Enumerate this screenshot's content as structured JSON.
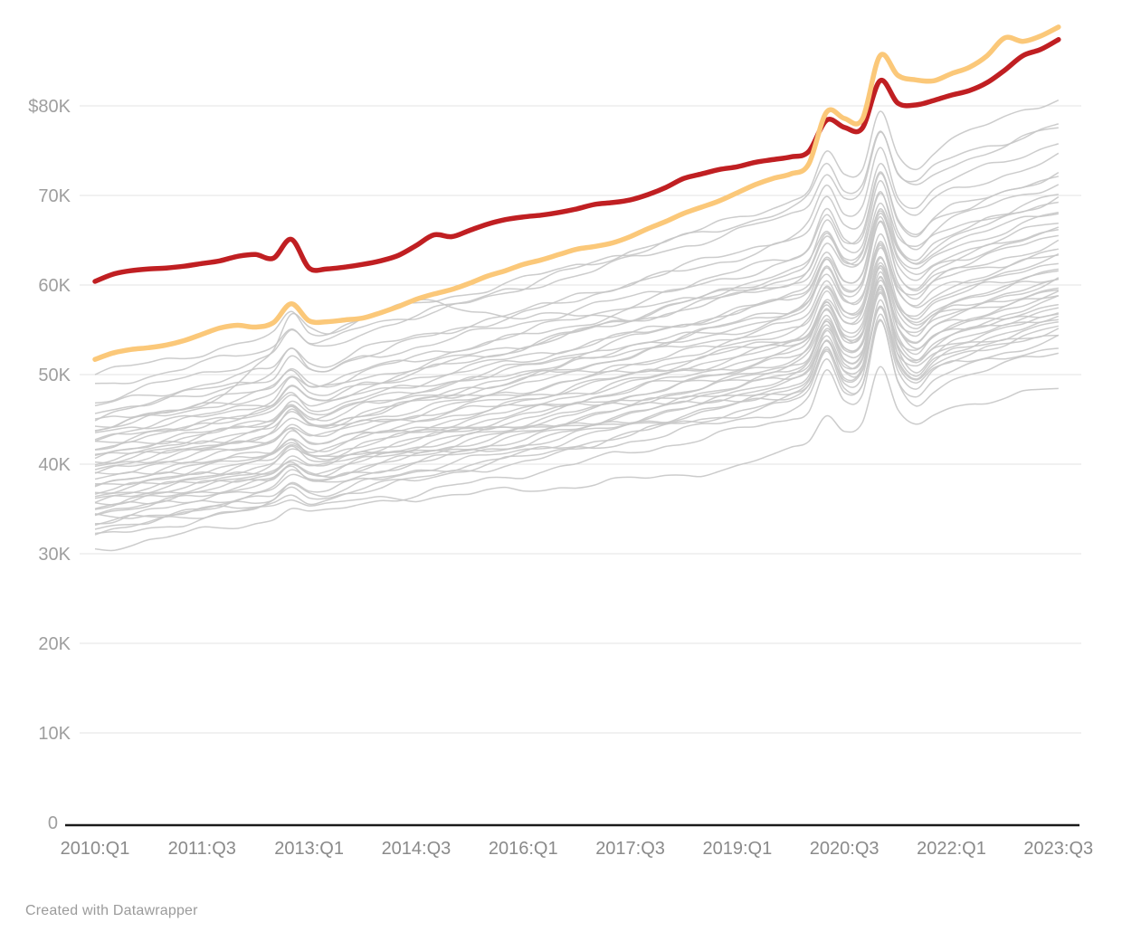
{
  "footer": {
    "credit": "Created with Datawrapper"
  },
  "chart_data": {
    "type": "line",
    "title": "",
    "xlabel": "",
    "ylabel": "",
    "x_unit": "quarter",
    "y_unit": "USD (thousands)",
    "ylim": [
      0,
      90
    ],
    "grid": "horizontal",
    "legend": "none",
    "x_tick_labels": [
      "2010:Q1",
      "2011:Q3",
      "2013:Q1",
      "2014:Q3",
      "2016:Q1",
      "2017:Q3",
      "2019:Q1",
      "2020:Q3",
      "2022:Q1",
      "2023:Q3"
    ],
    "x_tick_quarters": [
      0,
      6,
      12,
      18,
      24,
      30,
      36,
      42,
      48,
      54
    ],
    "n_quarters": 55,
    "y_tick_labels": [
      "$80K",
      "70K",
      "60K",
      "50K",
      "40K",
      "30K",
      "20K",
      "10K",
      "0"
    ],
    "y_tick_values": [
      80,
      70,
      60,
      50,
      40,
      30,
      20,
      10,
      0
    ],
    "colors": {
      "highlight_red": "#c01f22",
      "highlight_yellow": "#fbc879",
      "background_line": "#c7c7c7",
      "grid_line": "#e3e3e3",
      "axis_line": "#1a1a1a",
      "y_label": "#9e9e9e",
      "x_label": "#8a8a8a"
    },
    "series": [
      {
        "name": "highlight-red",
        "role": "highlight",
        "color_key": "highlight_red",
        "values": [
          60.4,
          61.2,
          61.6,
          61.8,
          61.9,
          62.1,
          62.4,
          62.7,
          63.2,
          63.4,
          63.0,
          65.1,
          61.9,
          61.8,
          62.0,
          62.3,
          62.7,
          63.3,
          64.4,
          65.6,
          65.4,
          66.1,
          66.8,
          67.3,
          67.6,
          67.8,
          68.1,
          68.5,
          69.0,
          69.2,
          69.5,
          70.1,
          70.9,
          71.9,
          72.4,
          72.9,
          73.2,
          73.7,
          74.0,
          74.3,
          74.9,
          78.4,
          77.6,
          77.5,
          82.8,
          80.3,
          80.1,
          80.6,
          81.2,
          81.7,
          82.6,
          84.0,
          85.6,
          86.3,
          87.4
        ]
      },
      {
        "name": "highlight-yellow",
        "role": "highlight",
        "color_key": "highlight_yellow",
        "values": [
          51.7,
          52.4,
          52.8,
          53.0,
          53.3,
          53.8,
          54.5,
          55.2,
          55.5,
          55.3,
          55.8,
          57.9,
          56.0,
          55.9,
          56.1,
          56.3,
          56.9,
          57.6,
          58.4,
          59.0,
          59.5,
          60.2,
          61.0,
          61.6,
          62.3,
          62.8,
          63.4,
          64.0,
          64.3,
          64.7,
          65.4,
          66.3,
          67.1,
          68.0,
          68.7,
          69.4,
          70.3,
          71.2,
          71.9,
          72.4,
          73.5,
          79.3,
          78.6,
          78.5,
          85.6,
          83.4,
          82.9,
          82.8,
          83.6,
          84.3,
          85.6,
          87.6,
          87.2,
          87.8,
          88.8
        ]
      }
    ],
    "background_series_note": "values sampled at x_tick_quarters; sp = spike amplitudes (K) at 2012:Q4, 2020:Q2, 2021:Q1",
    "background_series": [
      {
        "v": [
          50.0,
          52.5,
          55.0,
          57.8,
          60.6,
          63.7,
          66.8,
          70.2,
          74.1,
          78.0
        ],
        "sp": [
          2.2,
          3.8,
          6.1
        ]
      },
      {
        "v": [
          48.6,
          51.2,
          53.8,
          56.7,
          59.6,
          62.8,
          66.0,
          69.5,
          73.5,
          77.6
        ],
        "sp": [
          2.1,
          3.9,
          6.3
        ]
      },
      {
        "v": [
          47.0,
          50.1,
          53.1,
          56.5,
          59.9,
          63.7,
          67.4,
          71.5,
          76.2,
          81.0
        ],
        "sp": [
          2.3,
          4.0,
          6.5
        ]
      },
      {
        "v": [
          46.4,
          48.9,
          51.4,
          54.2,
          57.0,
          60.1,
          63.1,
          66.5,
          70.4,
          74.3
        ],
        "sp": [
          2.1,
          3.7,
          6.0
        ]
      },
      {
        "v": [
          45.8,
          48.2,
          50.5,
          53.1,
          55.8,
          58.6,
          61.5,
          64.7,
          68.3,
          72.0
        ],
        "sp": [
          2.0,
          3.8,
          6.3
        ]
      },
      {
        "v": [
          45.2,
          48.0,
          50.7,
          53.8,
          56.9,
          60.3,
          63.7,
          67.4,
          71.7,
          76.0
        ],
        "sp": [
          2.2,
          4.1,
          6.7
        ]
      },
      {
        "v": [
          44.6,
          46.9,
          49.2,
          51.7,
          54.3,
          57.0,
          59.8,
          62.9,
          66.4,
          70.0
        ],
        "sp": [
          1.9,
          3.9,
          6.5
        ]
      },
      {
        "v": [
          44.2,
          46.4,
          48.5,
          50.9,
          53.4,
          56.0,
          58.7,
          61.6,
          64.9,
          68.3
        ],
        "sp": [
          1.8,
          3.8,
          6.4
        ]
      },
      {
        "v": [
          43.8,
          46.4,
          49.0,
          51.8,
          54.7,
          57.9,
          61.0,
          64.5,
          68.5,
          72.5
        ],
        "sp": [
          2.0,
          4.2,
          7.0
        ]
      },
      {
        "v": [
          43.4,
          45.4,
          47.5,
          49.7,
          52.0,
          54.5,
          57.0,
          59.7,
          62.8,
          66.0
        ],
        "sp": [
          1.8,
          3.7,
          6.2
        ]
      },
      {
        "v": [
          43.0,
          45.4,
          47.8,
          50.4,
          53.1,
          56.0,
          58.9,
          62.1,
          65.8,
          69.5
        ],
        "sp": [
          1.9,
          4.1,
          6.9
        ]
      },
      {
        "v": [
          42.6,
          44.5,
          46.5,
          48.6,
          50.7,
          53.1,
          55.4,
          58.0,
          61.0,
          64.0
        ],
        "sp": [
          1.7,
          3.6,
          6.1
        ]
      },
      {
        "v": [
          42.2,
          44.4,
          46.7,
          49.1,
          51.6,
          54.4,
          57.1,
          60.1,
          63.5,
          67.0
        ],
        "sp": [
          1.8,
          4.0,
          6.8
        ]
      },
      {
        "v": [
          41.8,
          44.5,
          47.1,
          50.1,
          53.1,
          56.4,
          59.6,
          63.2,
          67.3,
          71.5
        ],
        "sp": [
          2.0,
          4.4,
          7.3
        ]
      },
      {
        "v": [
          41.5,
          43.4,
          45.4,
          47.5,
          49.7,
          52.0,
          54.4,
          57.0,
          60.0,
          63.0
        ],
        "sp": [
          1.6,
          3.7,
          6.3
        ]
      },
      {
        "v": [
          41.2,
          43.4,
          45.6,
          48.0,
          50.4,
          53.1,
          55.8,
          58.7,
          62.1,
          65.5
        ],
        "sp": [
          1.7,
          4.0,
          6.8
        ]
      },
      {
        "v": [
          40.9,
          42.8,
          44.7,
          46.8,
          48.9,
          51.2,
          53.6,
          56.1,
          59.0,
          62.0
        ],
        "sp": [
          1.6,
          3.8,
          6.4
        ]
      },
      {
        "v": [
          40.6,
          43.1,
          45.5,
          48.3,
          51.0,
          54.0,
          57.0,
          60.3,
          64.2,
          68.0
        ],
        "sp": [
          1.9,
          4.3,
          7.2
        ]
      },
      {
        "v": [
          40.3,
          42.2,
          44.0,
          46.1,
          48.2,
          50.4,
          52.7,
          55.2,
          58.1,
          61.0
        ],
        "sp": [
          1.5,
          3.7,
          6.3
        ]
      },
      {
        "v": [
          40.0,
          42.2,
          44.5,
          46.9,
          49.4,
          52.2,
          54.9,
          57.9,
          61.3,
          64.8
        ],
        "sp": [
          1.7,
          4.1,
          7.0
        ]
      },
      {
        "v": [
          39.7,
          41.6,
          43.4,
          45.5,
          47.5,
          49.8,
          52.1,
          54.5,
          57.4,
          60.3
        ],
        "sp": [
          1.5,
          3.8,
          6.4
        ]
      },
      {
        "v": [
          39.4,
          41.8,
          44.3,
          47.0,
          49.7,
          52.7,
          55.7,
          58.9,
          62.7,
          66.5
        ],
        "sp": [
          1.8,
          4.4,
          7.4
        ]
      },
      {
        "v": [
          39.1,
          40.9,
          42.8,
          44.8,
          46.9,
          49.1,
          51.4,
          53.9,
          56.7,
          59.6
        ],
        "sp": [
          1.5,
          3.8,
          6.5
        ]
      },
      {
        "v": [
          38.8,
          41.0,
          43.2,
          45.7,
          48.2,
          50.9,
          53.6,
          56.6,
          60.0,
          63.5
        ],
        "sp": [
          1.6,
          4.2,
          7.1
        ]
      },
      {
        "v": [
          44.0,
          46.5,
          55.0,
          58.0,
          56.5,
          56.5,
          59.5,
          62.0,
          65.0,
          70.0
        ],
        "sp": [
          3.0,
          3.5,
          5.5
        ]
      },
      {
        "v": [
          38.2,
          40.1,
          41.9,
          44.0,
          46.0,
          48.3,
          50.6,
          53.0,
          55.9,
          58.8
        ],
        "sp": [
          1.4,
          3.9,
          6.6
        ]
      },
      {
        "v": [
          37.9,
          40.1,
          42.3,
          44.8,
          47.2,
          50.0,
          52.7,
          55.6,
          59.1,
          62.5
        ],
        "sp": [
          1.6,
          4.3,
          7.3
        ]
      },
      {
        "v": [
          37.6,
          39.4,
          41.3,
          43.3,
          45.4,
          47.6,
          49.8,
          52.3,
          55.1,
          58.0
        ],
        "sp": [
          1.4,
          3.9,
          6.7
        ]
      },
      {
        "v": [
          37.3,
          39.5,
          41.7,
          44.1,
          46.5,
          49.2,
          51.8,
          54.7,
          58.1,
          61.5
        ],
        "sp": [
          1.5,
          4.3,
          7.4
        ]
      },
      {
        "v": [
          37.0,
          38.8,
          40.6,
          42.7,
          44.7,
          46.9,
          49.1,
          51.5,
          54.4,
          57.2
        ],
        "sp": [
          1.4,
          4.0,
          6.8
        ]
      },
      {
        "v": [
          36.7,
          38.8,
          41.0,
          43.4,
          45.7,
          48.4,
          51.0,
          53.8,
          57.2,
          60.5
        ],
        "sp": [
          1.5,
          4.4,
          7.5
        ]
      },
      {
        "v": [
          36.4,
          38.2,
          40.0,
          42.0,
          44.0,
          46.2,
          48.5,
          50.9,
          53.7,
          56.5
        ],
        "sp": [
          1.3,
          4.0,
          6.9
        ]
      },
      {
        "v": [
          36.1,
          38.2,
          40.4,
          42.7,
          45.1,
          47.7,
          50.3,
          53.2,
          56.5,
          59.8
        ],
        "sp": [
          1.5,
          4.5,
          7.7
        ]
      },
      {
        "v": [
          35.8,
          37.6,
          39.4,
          41.4,
          43.4,
          45.6,
          47.8,
          50.2,
          53.0,
          55.8
        ],
        "sp": [
          1.3,
          4.1,
          7.0
        ]
      },
      {
        "v": [
          35.5,
          37.6,
          39.7,
          42.1,
          44.4,
          47.0,
          49.6,
          52.4,
          55.7,
          59.0
        ],
        "sp": [
          1.4,
          4.6,
          7.9
        ]
      },
      {
        "v": [
          35.2,
          37.0,
          38.8,
          40.8,
          42.8,
          45.0,
          47.2,
          49.6,
          52.4,
          55.2
        ],
        "sp": [
          1.3,
          4.2,
          7.2
        ]
      },
      {
        "v": [
          34.9,
          37.0,
          39.1,
          41.5,
          43.8,
          46.4,
          48.9,
          51.7,
          55.0,
          58.3
        ],
        "sp": [
          1.4,
          4.7,
          8.1
        ]
      },
      {
        "v": [
          34.6,
          36.4,
          38.2,
          40.2,
          42.2,
          44.4,
          46.6,
          49.0,
          51.8,
          54.6
        ],
        "sp": [
          1.2,
          4.3,
          7.4
        ]
      },
      {
        "v": [
          34.3,
          36.4,
          38.5,
          40.8,
          43.2,
          45.7,
          48.3,
          51.1,
          54.3,
          57.6
        ],
        "sp": [
          1.4,
          4.8,
          8.3
        ]
      },
      {
        "v": [
          34.0,
          34.8,
          35.6,
          36.3,
          37.1,
          38.2,
          39.6,
          43.5,
          46.5,
          48.4
        ],
        "sp": [
          1.0,
          3.0,
          6.5
        ]
      },
      {
        "v": [
          33.6,
          35.7,
          37.8,
          40.1,
          42.4,
          45.0,
          47.5,
          50.3,
          53.6,
          56.8
        ],
        "sp": [
          1.3,
          4.9,
          8.6
        ]
      },
      {
        "v": [
          33.2,
          35.1,
          36.9,
          39.0,
          41.1,
          43.4,
          45.7,
          48.2,
          51.1,
          54.0
        ],
        "sp": [
          1.2,
          4.5,
          7.8
        ]
      },
      {
        "v": [
          32.8,
          34.9,
          37.0,
          39.3,
          41.6,
          44.2,
          46.7,
          49.5,
          52.8,
          56.0
        ],
        "sp": [
          1.3,
          5.0,
          8.8
        ]
      },
      {
        "v": [
          32.4,
          34.3,
          36.2,
          38.3,
          40.3,
          42.6,
          44.9,
          47.4,
          50.4,
          53.3
        ],
        "sp": [
          1.1,
          4.6,
          8.0
        ]
      },
      {
        "v": [
          31.8,
          33.9,
          36.0,
          38.4,
          40.7,
          43.3,
          45.9,
          48.7,
          52.0,
          55.3
        ],
        "sp": [
          1.2,
          5.1,
          9.0
        ]
      },
      {
        "v": [
          30.5,
          32.5,
          34.5,
          36.7,
          38.9,
          41.3,
          43.7,
          46.4,
          49.5,
          52.6
        ],
        "sp": [
          1.1,
          4.8,
          8.5
        ]
      }
    ]
  }
}
